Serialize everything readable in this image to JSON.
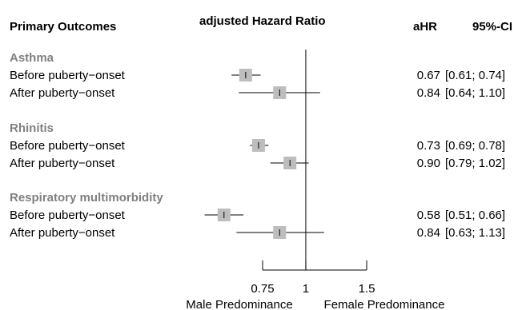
{
  "headers": {
    "col_outcome": "Primary Outcomes",
    "col_plot": "adjusted Hazard Ratio",
    "col_ahr": "aHR",
    "col_ci": "95%-CI"
  },
  "chart_data": {
    "type": "forest",
    "reference_line": 1,
    "xlim": [
      0.75,
      1.5
    ],
    "ticks": [
      "0.75",
      "1",
      "1.5"
    ],
    "tick_values": [
      0.75,
      1,
      1.5
    ],
    "xlabel_left": "Male Predominance",
    "xlabel_right": "Female Predominance",
    "scale": "log",
    "groups": [
      {
        "name": "Asthma",
        "rows": [
          {
            "label": "Before puberty−onset",
            "ahr": 0.67,
            "lo": 0.61,
            "hi": 0.74,
            "ahr_text": "0.67",
            "ci_text": "[0.61; 0.74]"
          },
          {
            "label": "After puberty−onset",
            "ahr": 0.84,
            "lo": 0.64,
            "hi": 1.1,
            "ahr_text": "0.84",
            "ci_text": "[0.64; 1.10]"
          }
        ]
      },
      {
        "name": "Rhinitis",
        "rows": [
          {
            "label": "Before puberty−onset",
            "ahr": 0.73,
            "lo": 0.69,
            "hi": 0.78,
            "ahr_text": "0.73",
            "ci_text": "[0.69; 0.78]"
          },
          {
            "label": "After puberty−onset",
            "ahr": 0.9,
            "lo": 0.79,
            "hi": 1.02,
            "ahr_text": "0.90",
            "ci_text": "[0.79; 1.02]"
          }
        ]
      },
      {
        "name": "Respiratory multimorbidity",
        "rows": [
          {
            "label": "Before puberty−onset",
            "ahr": 0.58,
            "lo": 0.51,
            "hi": 0.66,
            "ahr_text": "0.58",
            "ci_text": "[0.51; 0.66]"
          },
          {
            "label": "After puberty−onset",
            "ahr": 0.84,
            "lo": 0.63,
            "hi": 1.13,
            "ahr_text": "0.84",
            "ci_text": "[0.63; 1.13]"
          }
        ]
      }
    ]
  }
}
